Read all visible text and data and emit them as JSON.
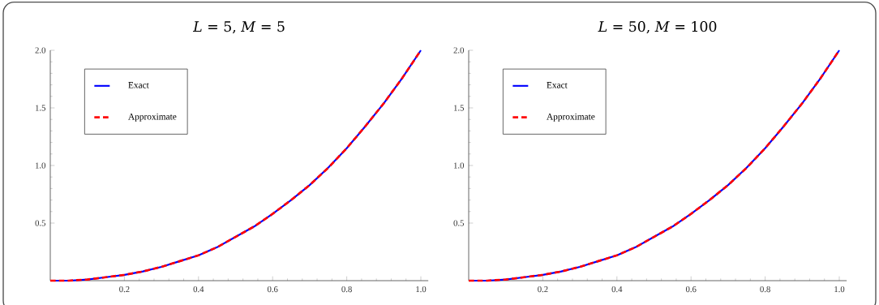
{
  "chart_data": [
    {
      "type": "line",
      "title": "*L* = 5, *M* = 5",
      "x": [
        0,
        0.05,
        0.1,
        0.15,
        0.2,
        0.25,
        0.3,
        0.35,
        0.4,
        0.45,
        0.5,
        0.55,
        0.6,
        0.65,
        0.7,
        0.75,
        0.8,
        0.85,
        0.9,
        0.95,
        1.0
      ],
      "series": [
        {
          "name": "Exact",
          "color": "#0000ff",
          "line_style": "solid",
          "values": [
            0,
            0.0,
            0.01,
            0.03,
            0.05,
            0.08,
            0.12,
            0.17,
            0.22,
            0.29,
            0.38,
            0.47,
            0.58,
            0.7,
            0.83,
            0.98,
            1.15,
            1.34,
            1.54,
            1.76,
            2.0
          ]
        },
        {
          "name": "Approximate",
          "color": "#ff0000",
          "line_style": "dashed",
          "values": [
            0,
            0.0,
            0.01,
            0.03,
            0.05,
            0.08,
            0.12,
            0.17,
            0.22,
            0.29,
            0.38,
            0.47,
            0.58,
            0.7,
            0.83,
            0.98,
            1.15,
            1.34,
            1.54,
            1.76,
            2.0
          ]
        }
      ],
      "xlim": [
        0,
        1.02
      ],
      "ylim": [
        0,
        2.0
      ],
      "xticks": [
        {
          "value": 0.2,
          "label": "0.2"
        },
        {
          "value": 0.4,
          "label": "0.4"
        },
        {
          "value": 0.6,
          "label": "0.6"
        },
        {
          "value": 0.8,
          "label": "0.8"
        },
        {
          "value": 1,
          "label": "1.0"
        }
      ],
      "yticks": [
        {
          "value": 0.5,
          "label": "0.5"
        },
        {
          "value": 1,
          "label": "1.0"
        },
        {
          "value": 1.5,
          "label": "1.5"
        },
        {
          "value": 2,
          "label": "2.0"
        }
      ],
      "legend": "top left"
    },
    {
      "type": "line",
      "title": "*L* = 50, *M* = 100",
      "x": [
        0,
        0.05,
        0.1,
        0.15,
        0.2,
        0.25,
        0.3,
        0.35,
        0.4,
        0.45,
        0.5,
        0.55,
        0.6,
        0.65,
        0.7,
        0.75,
        0.8,
        0.85,
        0.9,
        0.95,
        1.0
      ],
      "series": [
        {
          "name": "Exact",
          "color": "#0000ff",
          "line_style": "solid",
          "values": [
            0,
            0.0,
            0.01,
            0.03,
            0.05,
            0.08,
            0.12,
            0.17,
            0.22,
            0.29,
            0.38,
            0.47,
            0.58,
            0.7,
            0.83,
            0.98,
            1.15,
            1.34,
            1.54,
            1.76,
            2.0
          ]
        },
        {
          "name": "Approximate",
          "color": "#ff0000",
          "line_style": "dashed",
          "values": [
            0,
            0.0,
            0.01,
            0.03,
            0.05,
            0.08,
            0.12,
            0.17,
            0.22,
            0.29,
            0.38,
            0.47,
            0.58,
            0.7,
            0.83,
            0.98,
            1.15,
            1.34,
            1.54,
            1.76,
            2.0
          ]
        }
      ],
      "xlim": [
        0,
        1.02
      ],
      "ylim": [
        0,
        2.0
      ],
      "xticks": [
        {
          "value": 0.2,
          "label": "0.2"
        },
        {
          "value": 0.4,
          "label": "0.4"
        },
        {
          "value": 0.6,
          "label": "0.6"
        },
        {
          "value": 0.8,
          "label": "0.8"
        },
        {
          "value": 1,
          "label": "1.0"
        }
      ],
      "yticks": [
        {
          "value": 0.5,
          "label": "0.5"
        },
        {
          "value": 1,
          "label": "1.0"
        },
        {
          "value": 1.5,
          "label": "1.5"
        },
        {
          "value": 2,
          "label": "2.0"
        }
      ],
      "legend": "top left"
    }
  ]
}
